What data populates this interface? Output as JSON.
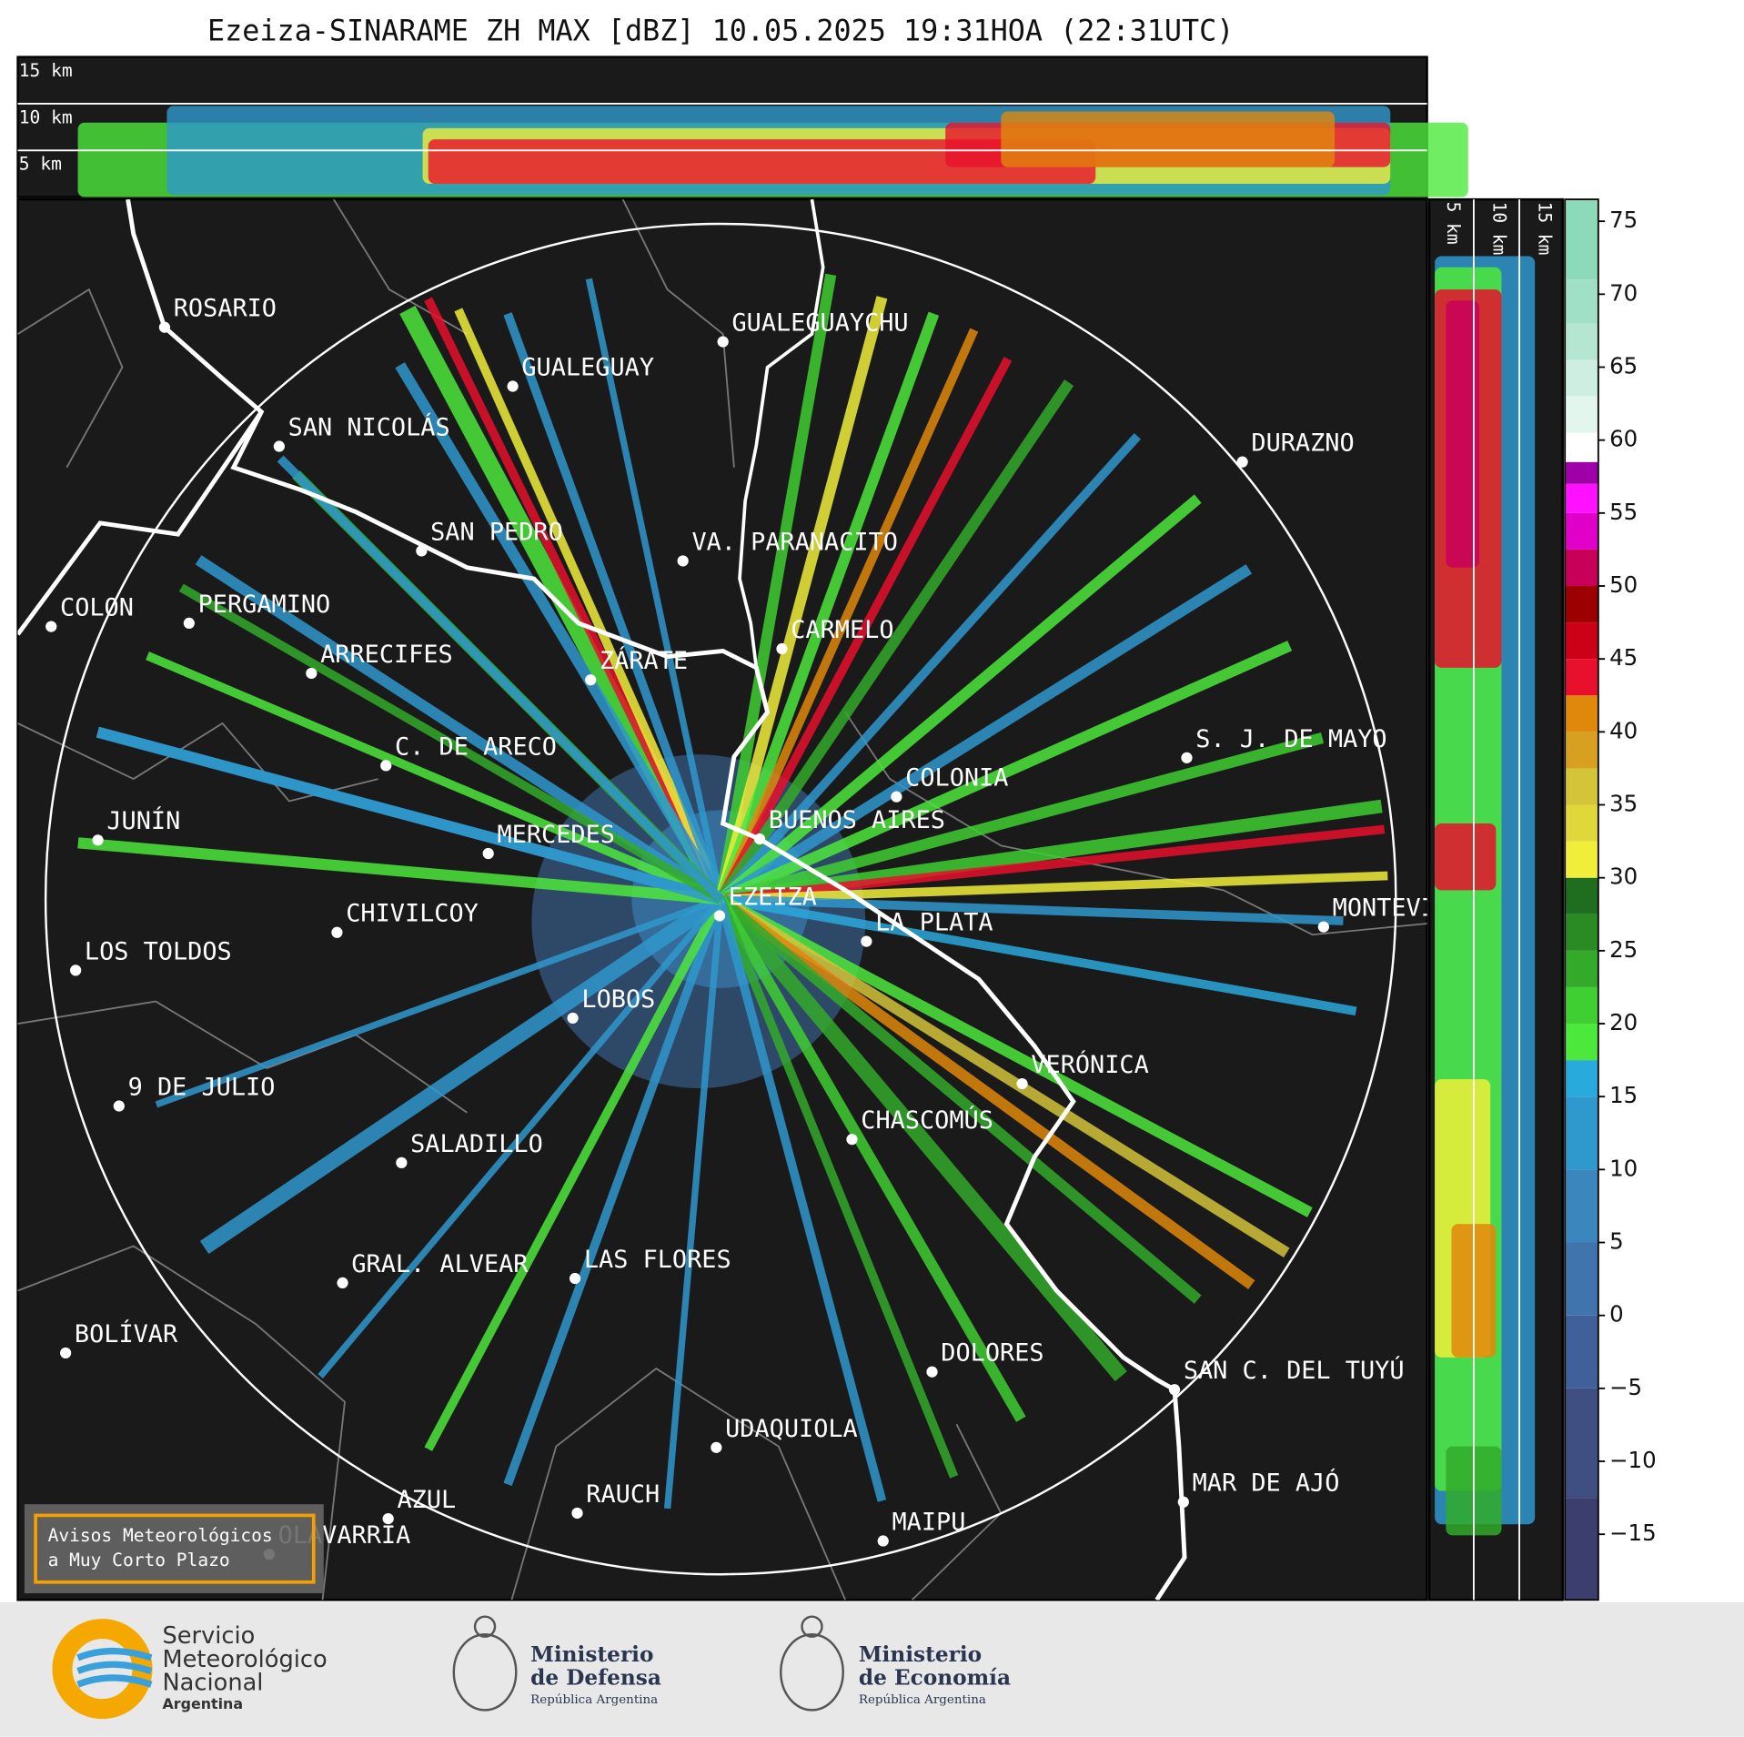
{
  "title": "Ezeiza-SINARAME ZH MAX [dBZ] 10.05.2025 19:31HOA (22:31UTC)",
  "cross_section": {
    "top_labels": [
      "15 km",
      "10 km",
      "5 km"
    ],
    "side_labels": [
      "5 km",
      "10 km",
      "15 km"
    ]
  },
  "cities": [
    "ROSARIO",
    "GUALEGUAYCHU",
    "GUALEGUAY",
    "SAN NICOLÁS",
    "DURAZNO",
    "SAN PEDRO",
    "VA. PARANACITO",
    "COLON",
    "PERGAMINO",
    "CARMELO",
    "ARRECIFES",
    "ZÁRATE",
    "C. DE ARECO",
    "S. J. DE MAYO",
    "COLONIA",
    "JUNÍN",
    "BUENOS AIRES",
    "MERCEDES",
    "EZEIZA",
    "CHIVILCOY",
    "LA PLATA",
    "MONTEVIDEO",
    "LOS TOLDOS",
    "LOBOS",
    "VERÓNICA",
    "9 DE JULIO",
    "CHASCOMÚS",
    "SALADILLO",
    "GRAL. ALVEAR",
    "LAS FLORES",
    "BOLÍVAR",
    "DOLORES",
    "SAN C. DEL TUYÚ",
    "UDAQUIOLA",
    "MAR DE AJÓ",
    "RAUCH",
    "AZUL",
    "OLAVARRÍA",
    "MAIPU"
  ],
  "colorbar": {
    "lim": [
      -19.5,
      76.5
    ],
    "ticks": [
      {
        "value": -15,
        "label": "−15"
      },
      {
        "value": -10,
        "label": "−10"
      },
      {
        "value": -5,
        "label": "−5"
      },
      0,
      5,
      10,
      15,
      20,
      25,
      30,
      35,
      40,
      45,
      50,
      55,
      60,
      65,
      70,
      75
    ],
    "segments": [
      [
        -19.5,
        "#3c3f6e"
      ],
      [
        -12.5,
        "#3f4f82"
      ],
      [
        -5,
        "#40609a"
      ],
      [
        0,
        "#3f74ad"
      ],
      [
        5,
        "#3a86bd"
      ],
      [
        10,
        "#2f98cc"
      ],
      [
        15,
        "#28aadc"
      ],
      [
        17.5,
        "#4de83c"
      ],
      [
        20,
        "#3fcf32"
      ],
      [
        22.5,
        "#33aa2a"
      ],
      [
        25,
        "#2a8a24"
      ],
      [
        27.5,
        "#1f6e1f"
      ],
      [
        30,
        "#f0ee3a"
      ],
      [
        32.5,
        "#e0d83a"
      ],
      [
        35,
        "#d4c43a"
      ],
      [
        37.5,
        "#d8a020"
      ],
      [
        40,
        "#e0880c"
      ],
      [
        42.5,
        "#e8102c"
      ],
      [
        45,
        "#cc0016"
      ],
      [
        47.5,
        "#9c0000"
      ],
      [
        50,
        "#c8005a"
      ],
      [
        52.5,
        "#e000c8"
      ],
      [
        55,
        "#ff10ff"
      ],
      [
        57,
        "#a000a8"
      ],
      [
        58.5,
        "#ffffff"
      ],
      [
        60.5,
        "#e3f6ed"
      ],
      [
        63,
        "#cdeee0"
      ],
      [
        65.5,
        "#b4e6d2"
      ],
      [
        68,
        "#9fe0c6"
      ],
      [
        71,
        "#8cdab9"
      ]
    ]
  },
  "notice": [
    "Avisos Meteorológicos",
    "a Muy Corto Plazo"
  ],
  "footer": {
    "smn": [
      "Servicio",
      "Meteorológico",
      "Nacional",
      "Argentina"
    ],
    "defensa": [
      "Ministerio",
      "de Defensa",
      "República Argentina"
    ],
    "economia": [
      "Ministerio",
      "de Economía",
      "República Argentina"
    ]
  }
}
